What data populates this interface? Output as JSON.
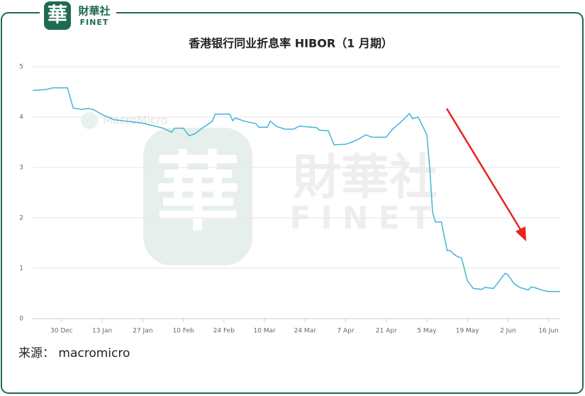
{
  "brand": {
    "logo_char": "華",
    "name": "財華社",
    "latin": "FINET"
  },
  "watermark": {
    "name": "財華社",
    "latin": "FINET",
    "provider": "MacroMicro"
  },
  "source": "来源：  macromicro",
  "chart_data": {
    "type": "line",
    "title": "香港银行同业折息率 HIBOR（1 月期）",
    "x": [
      "20 Dec",
      "25 Dec",
      "27 Dec",
      "30 Dec",
      "1 Jan",
      "3 Jan",
      "6 Jan",
      "8 Jan",
      "10 Jan",
      "13 Jan",
      "17 Jan",
      "27 Jan",
      "3 Feb",
      "6 Feb",
      "7 Feb",
      "10 Feb",
      "12 Feb",
      "14 Feb",
      "17 Feb",
      "20 Feb",
      "21 Feb",
      "26 Feb",
      "27 Feb",
      "28 Feb",
      "3 Mar",
      "7 Mar",
      "8 Mar",
      "11 Mar",
      "12 Mar",
      "14 Mar",
      "17 Mar",
      "20 Mar",
      "22 Mar",
      "28 Mar",
      "29 Mar",
      "1 Apr",
      "3 Apr",
      "7 Apr",
      "9 Apr",
      "11 Apr",
      "14 Apr",
      "16 Apr",
      "21 Apr",
      "23 Apr",
      "26 Apr",
      "29 Apr",
      "30 Apr",
      "2 May",
      "5 May",
      "6 May",
      "7 May",
      "8 May",
      "10 May",
      "12 May",
      "13 May",
      "15 May",
      "17 May",
      "19 May",
      "21 May",
      "24 May",
      "25 May",
      "28 May",
      "30 May",
      "1 Jun",
      "2 Jun",
      "4 Jun",
      "6 Jun",
      "9 Jun",
      "10 Jun",
      "11 Jun",
      "14 Jun",
      "16 Jun",
      "20 Jun"
    ],
    "series": [
      {
        "color": "#41b6d6",
        "values": [
          4.53,
          4.55,
          4.58,
          4.58,
          4.58,
          4.18,
          4.15,
          4.17,
          4.15,
          4.05,
          3.95,
          3.88,
          3.78,
          3.7,
          3.78,
          3.78,
          3.63,
          3.67,
          3.8,
          3.92,
          4.06,
          4.06,
          3.93,
          3.98,
          3.92,
          3.87,
          3.8,
          3.8,
          3.92,
          3.82,
          3.76,
          3.76,
          3.82,
          3.79,
          3.74,
          3.73,
          3.45,
          3.46,
          3.5,
          3.55,
          3.65,
          3.6,
          3.6,
          3.75,
          3.9,
          4.07,
          3.97,
          4.0,
          3.65,
          3.0,
          2.1,
          1.92,
          1.92,
          1.35,
          1.35,
          1.25,
          1.2,
          0.75,
          0.6,
          0.58,
          0.62,
          0.6,
          0.75,
          0.9,
          0.87,
          0.7,
          0.62,
          0.57,
          0.63,
          0.62,
          0.56,
          0.54,
          0.54
        ]
      }
    ],
    "xlim": [
      "20 Dec",
      "20 Jun"
    ],
    "xticks": [
      "30 Dec",
      "13 Jan",
      "27 Jan",
      "10 Feb",
      "24 Feb",
      "10 Mar",
      "24 Mar",
      "7 Apr",
      "21 Apr",
      "5 May",
      "19 May",
      "2 Jun",
      "16 Jun"
    ],
    "ylim": [
      0,
      5
    ],
    "yticks": [
      0,
      1,
      2,
      3,
      4,
      5
    ],
    "grid": true
  }
}
